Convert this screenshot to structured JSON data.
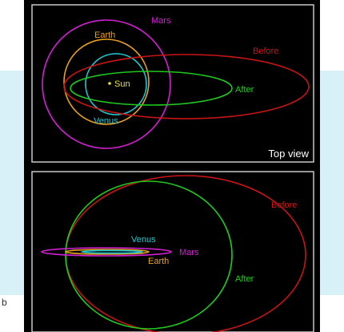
{
  "colors": {
    "mars": "#d21fd2",
    "earth": "#e8a020",
    "venus": "#1fc8d2",
    "sun": "#e8e040",
    "before": "#c81414",
    "after": "#1fc81f",
    "panel_border": "#c8c8c8"
  },
  "top_panel": {
    "view_label": "Top view",
    "labels": {
      "mars": "Mars",
      "earth": "Earth",
      "sun": "Sun",
      "venus": "Venus",
      "before": "Before",
      "after": "After"
    }
  },
  "bottom_panel": {
    "labels": {
      "venus": "Venus",
      "mars": "Mars",
      "earth": "Earth",
      "before": "Before",
      "after": "After"
    }
  },
  "stray_text": "b"
}
